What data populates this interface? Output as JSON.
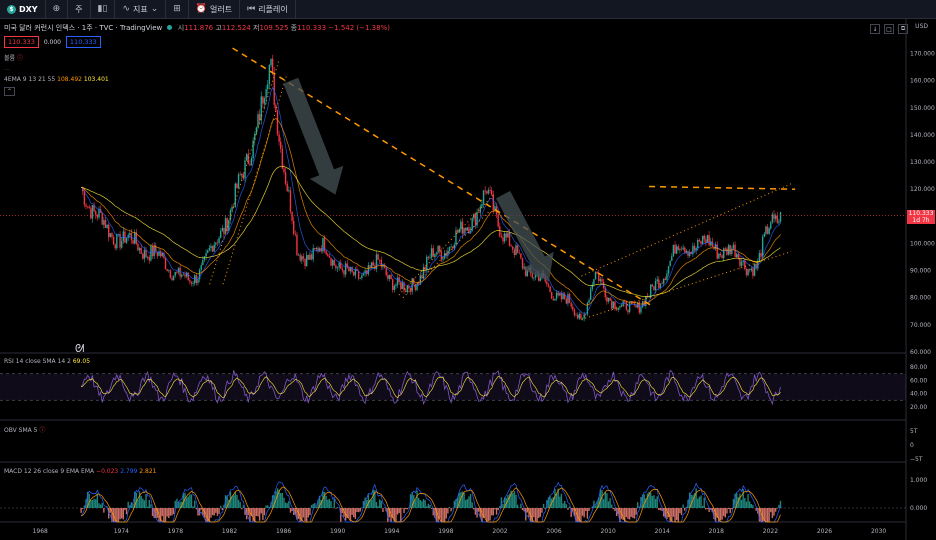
{
  "toolbar": {
    "symbol": "DXY",
    "interval": "주",
    "indicators_label": "지표",
    "alert_label": "얼러트",
    "replay_label": "리플레이"
  },
  "legend": {
    "title": "미국 달러 커런시 인덱스 · 1주 · TVC · TradingView",
    "open_label": "시",
    "open": "111.876",
    "high_label": "고",
    "high": "112.524",
    "low_label": "저",
    "low": "109.525",
    "close_label": "종",
    "close": "110.333",
    "change": "−1.542 (−1.38%)",
    "sell": "110.333",
    "spread": "0.000",
    "buy": "110.333",
    "volume_label": "볼륨",
    "ribbon_label": "4EMA 9 13 21 55",
    "ema_values": [
      "108.492",
      "103.401"
    ]
  },
  "price_axis": {
    "unit": "USD",
    "ticks": [
      "170.000",
      "160.000",
      "150.000",
      "140.000",
      "130.000",
      "120.000",
      "110.000",
      "100.000",
      "90.000",
      "80.000",
      "70.000",
      "60.000"
    ],
    "last_price": "110.333",
    "last_price_sub": "1d 7h"
  },
  "rsi": {
    "label": "RSI 14 close SMA 14 2",
    "value": "69.05",
    "ticks": [
      "80.00",
      "60.00",
      "40.00",
      "20.00"
    ]
  },
  "obv": {
    "label": "OBV SMA 5",
    "ticks": [
      "5T",
      "0",
      "−5T"
    ]
  },
  "macd": {
    "label": "MACD 12 26 close 9 EMA EMA",
    "values": [
      "−0.023",
      "2.799",
      "2.821"
    ],
    "ticks": [
      "1.000",
      "0.000"
    ]
  },
  "time_axis": [
    "1968",
    "1974",
    "1978",
    "1982",
    "1986",
    "1990",
    "1994",
    "1998",
    "2002",
    "2006",
    "2010",
    "2014",
    "2018",
    "2022",
    "2026",
    "2030"
  ],
  "chart_data": {
    "type": "line",
    "title": "미국 달러 커런시 인덱스",
    "x": [
      1971,
      1973,
      1975,
      1977,
      1979,
      1981,
      1983,
      1985,
      1987,
      1989,
      1991,
      1993,
      1995,
      1997,
      1999,
      2001,
      2003,
      2005,
      2007,
      2008,
      2009,
      2011,
      2013,
      2015,
      2017,
      2019,
      2021,
      2022
    ],
    "series": [
      {
        "name": "DXY",
        "values": [
          120,
          104,
          100,
          94,
          85,
          100,
          125,
          164,
          95,
          98,
          87,
          92,
          82,
          95,
          103,
          118,
          96,
          86,
          78,
          72,
          88,
          75,
          80,
          98,
          100,
          97,
          90,
          110
        ]
      }
    ],
    "ylim": [
      60,
      175
    ],
    "colors": {
      "up": "#26a69a",
      "down": "#f23645",
      "trend": "#ff9800",
      "arrow": "#445155"
    }
  }
}
